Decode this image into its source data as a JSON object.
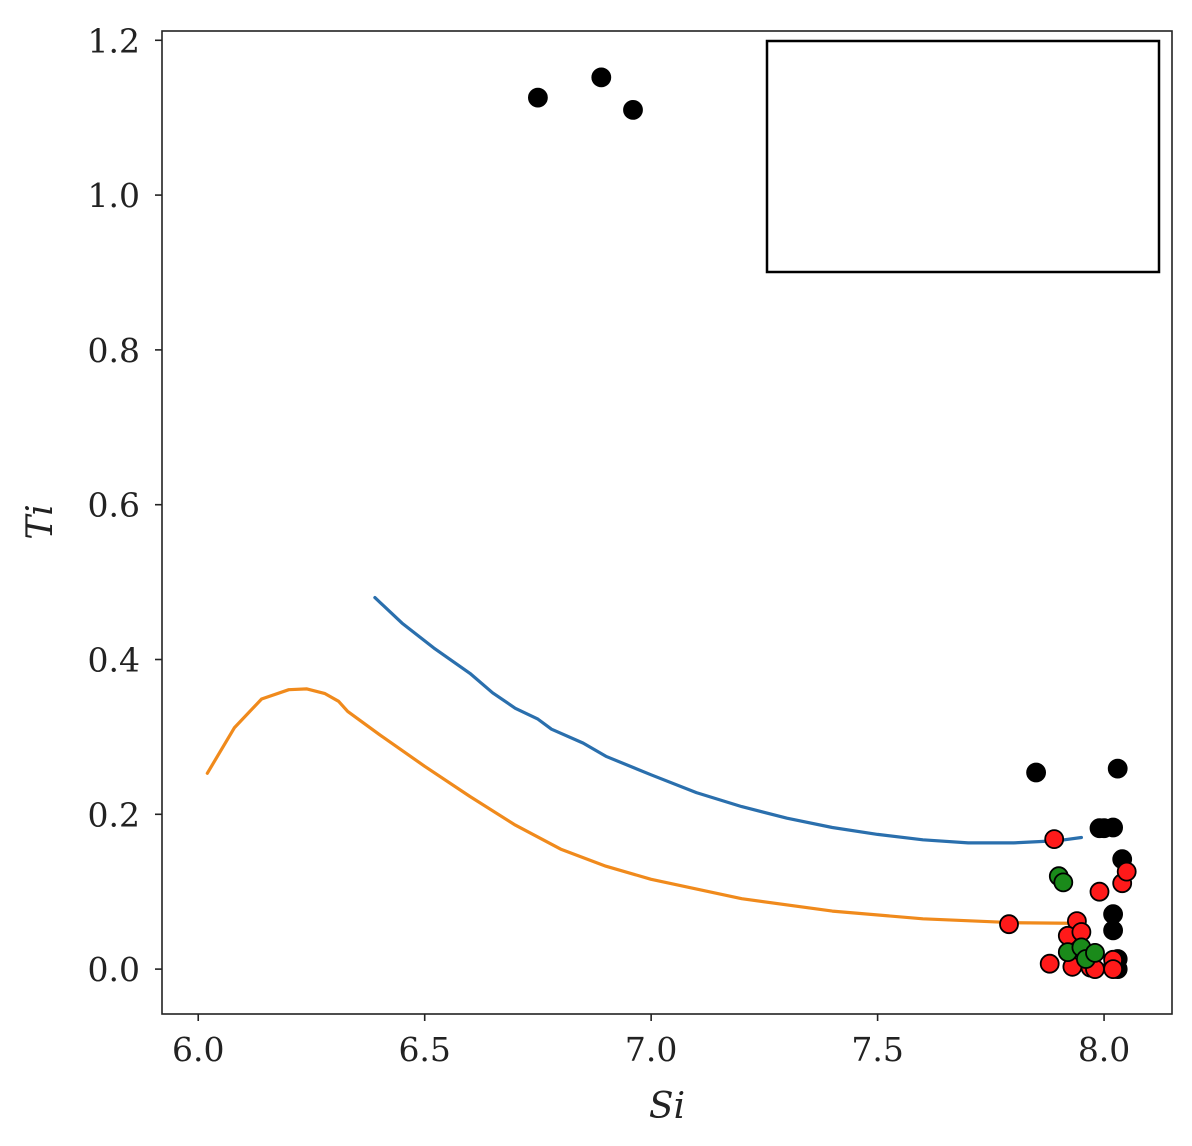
{
  "chart_data": {
    "type": "scatter",
    "title": "",
    "xlabel": "Si",
    "ylabel": "Ti",
    "xlim": [
      5.92,
      8.15
    ],
    "ylim": [
      -0.058,
      1.212
    ],
    "xticks": [
      6.0,
      6.5,
      7.0,
      7.5,
      8.0
    ],
    "yticks": [
      0.0,
      0.2,
      0.4,
      0.6,
      0.8,
      1.0,
      1.2
    ],
    "xtick_labels": [
      "6.0",
      "6.5",
      "7.0",
      "7.5",
      "8.0"
    ],
    "ytick_labels": [
      "0.0",
      "0.2",
      "0.4",
      "0.6",
      "0.8",
      "1.0",
      "1.2"
    ],
    "grid": false,
    "legend": {
      "placement": "top-right",
      "entries": []
    },
    "lines": [
      {
        "name": "blue-curve",
        "color": "#2a6fad",
        "x": [
          6.39,
          6.45,
          6.52,
          6.6,
          6.65,
          6.7,
          6.75,
          6.78,
          6.85,
          6.9,
          7.0,
          7.1,
          7.2,
          7.3,
          7.4,
          7.5,
          7.6,
          7.7,
          7.8,
          7.9,
          7.95
        ],
        "y": [
          0.48,
          0.447,
          0.415,
          0.382,
          0.357,
          0.337,
          0.323,
          0.31,
          0.292,
          0.275,
          0.251,
          0.228,
          0.21,
          0.195,
          0.183,
          0.174,
          0.167,
          0.163,
          0.163,
          0.166,
          0.17
        ]
      },
      {
        "name": "orange-curve",
        "color": "#f08a1c",
        "x": [
          6.02,
          6.08,
          6.14,
          6.2,
          6.24,
          6.28,
          6.31,
          6.33,
          6.4,
          6.5,
          6.6,
          6.7,
          6.8,
          6.9,
          7.0,
          7.2,
          7.4,
          7.6,
          7.8,
          7.95
        ],
        "y": [
          0.253,
          0.312,
          0.349,
          0.361,
          0.362,
          0.356,
          0.346,
          0.333,
          0.303,
          0.262,
          0.223,
          0.186,
          0.155,
          0.133,
          0.116,
          0.091,
          0.075,
          0.065,
          0.06,
          0.059
        ]
      }
    ],
    "series": [
      {
        "name": "black",
        "color": "#000000",
        "edge": "#000000",
        "points": [
          [
            6.75,
            1.126
          ],
          [
            6.89,
            1.152
          ],
          [
            6.96,
            1.11
          ],
          [
            7.85,
            0.254
          ],
          [
            8.03,
            0.259
          ],
          [
            7.99,
            0.182
          ],
          [
            8.0,
            0.182
          ],
          [
            8.02,
            0.183
          ],
          [
            8.04,
            0.142
          ],
          [
            8.02,
            0.071
          ],
          [
            8.02,
            0.05
          ],
          [
            8.03,
            0.013
          ],
          [
            8.02,
            0.004
          ],
          [
            8.03,
            0.0
          ]
        ]
      },
      {
        "name": "red",
        "color": "#ff1a1a",
        "edge": "#000000",
        "points": [
          [
            7.89,
            0.168
          ],
          [
            7.79,
            0.058
          ],
          [
            7.99,
            0.1
          ],
          [
            8.04,
            0.111
          ],
          [
            8.05,
            0.126
          ],
          [
            7.94,
            0.062
          ],
          [
            7.92,
            0.043
          ],
          [
            7.95,
            0.048
          ],
          [
            7.88,
            0.007
          ],
          [
            7.93,
            0.003
          ],
          [
            7.97,
            0.002
          ],
          [
            8.02,
            0.012
          ],
          [
            8.02,
            0.0
          ],
          [
            7.98,
            0.0
          ]
        ]
      },
      {
        "name": "green",
        "color": "#1a8a1a",
        "edge": "#000000",
        "points": [
          [
            7.9,
            0.12
          ],
          [
            7.91,
            0.112
          ],
          [
            7.92,
            0.022
          ],
          [
            7.95,
            0.028
          ],
          [
            7.96,
            0.013
          ],
          [
            7.98,
            0.021
          ]
        ]
      }
    ]
  }
}
